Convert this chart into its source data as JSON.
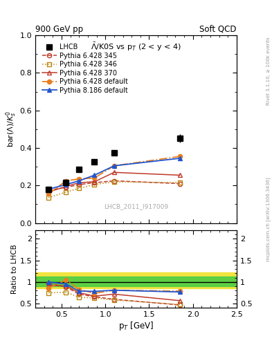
{
  "title_top_left": "900 GeV pp",
  "title_top_right": "Soft QCD",
  "plot_title": "$\\bar{\\Lambda}$/K0S vs p$_T$ (2 < y < 4)",
  "watermark": "LHCB_2011_I917009",
  "rivet_label": "Rivet 3.1.10, ≥ 100k events",
  "mcplots_label": "mcplots.cern.ch [arXiv:1306.3436]",
  "ylabel_main": "bar($\\Lambda$)/$K^0_s$",
  "ylabel_ratio": "Ratio to LHCB",
  "xlabel": "p$_T$ [GeV]",
  "xlim": [
    0.2,
    2.5
  ],
  "ylim_main": [
    0.0,
    1.0
  ],
  "ylim_ratio": [
    0.4,
    2.2
  ],
  "lhcb_x": [
    0.35,
    0.55,
    0.7,
    0.875,
    1.1,
    1.85
  ],
  "lhcb_y": [
    0.18,
    0.215,
    0.285,
    0.325,
    0.375,
    0.45
  ],
  "lhcb_yerr": [
    0.012,
    0.012,
    0.012,
    0.015,
    0.015,
    0.022
  ],
  "p6_345_x": [
    0.35,
    0.55,
    0.7,
    0.875,
    1.1,
    1.85
  ],
  "p6_345_y": [
    0.175,
    0.19,
    0.205,
    0.215,
    0.225,
    0.21
  ],
  "p6_345_color": "#c0392b",
  "p6_346_x": [
    0.35,
    0.55,
    0.7,
    0.875,
    1.1,
    1.85
  ],
  "p6_346_y": [
    0.135,
    0.165,
    0.185,
    0.205,
    0.22,
    0.215
  ],
  "p6_346_color": "#b8860b",
  "p6_370_x": [
    0.35,
    0.55,
    0.7,
    0.875,
    1.1,
    1.85
  ],
  "p6_370_y": [
    0.165,
    0.195,
    0.215,
    0.22,
    0.27,
    0.255
  ],
  "p6_370_color": "#c0392b",
  "p6_default_x": [
    0.35,
    0.55,
    0.7,
    0.875,
    1.1,
    1.85
  ],
  "p6_default_y": [
    0.155,
    0.225,
    0.235,
    0.24,
    0.305,
    0.355
  ],
  "p6_default_color": "#e67e22",
  "p8_default_x": [
    0.35,
    0.55,
    0.7,
    0.875,
    1.1,
    1.85
  ],
  "p8_default_y": [
    0.18,
    0.205,
    0.225,
    0.255,
    0.305,
    0.345
  ],
  "p8_default_color": "#2255cc",
  "ratio_345_y": [
    0.97,
    0.885,
    0.72,
    0.66,
    0.6,
    0.47
  ],
  "ratio_346_y": [
    0.75,
    0.765,
    0.65,
    0.63,
    0.585,
    0.48
  ],
  "ratio_370_y": [
    0.92,
    0.91,
    0.755,
    0.675,
    0.72,
    0.57
  ],
  "ratio_p6def_y": [
    0.86,
    1.045,
    0.83,
    0.74,
    0.81,
    0.79
  ],
  "ratio_p8def_y": [
    1.0,
    0.955,
    0.79,
    0.785,
    0.81,
    0.77
  ],
  "band_yellow_lo": 0.85,
  "band_yellow_hi": 1.22,
  "band_green_lo": 0.9,
  "band_green_hi": 1.13
}
